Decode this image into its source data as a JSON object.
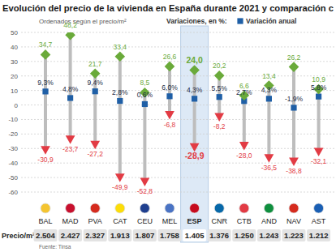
{
  "chart_data": {
    "type": "dot",
    "title": "Evolución del precio de la vivienda en España durante 2021 y comparación c",
    "subtitle": "Ordenados según el precio/m²",
    "legend_title": "Variaciones, en %:",
    "categories": [
      "BAL",
      "MAD",
      "PVA",
      "CAT",
      "CEU",
      "MEL",
      "ESP",
      "CNR",
      "CTB",
      "AND",
      "NAV",
      "AST"
    ],
    "series": [
      {
        "name": "Variación anual",
        "color": "#1f5fa6",
        "marker": "square",
        "values": [
          9.3,
          4.8,
          9.4,
          2.8,
          0.6,
          6.0,
          4.3,
          5.5,
          2.7,
          4.3,
          -1.9,
          5.8
        ],
        "value_labels": [
          "9,3%",
          "4,8%",
          "9,4%",
          "2,8%",
          "0,6%",
          "6,0%",
          "4,3%",
          "5,5%",
          "2,7%",
          "4,3%",
          "-1,9%",
          "5,8%"
        ]
      },
      {
        "color": "#6aaa3a",
        "marker": "diamond",
        "values": [
          34.7,
          48.2,
          21.7,
          33.4,
          8.5,
          26.6,
          24.0,
          20.2,
          6.6,
          13.4,
          26.2,
          10.9
        ],
        "value_labels": [
          "34,7",
          "48,2",
          "21,7",
          "33,4",
          "8,5",
          "26,6",
          "24,0",
          "20,2",
          "6,6",
          "13,4",
          "26,2",
          "10,9"
        ]
      },
      {
        "color": "#e23b44",
        "marker": "triangle",
        "values": [
          -30.9,
          -23.7,
          -27.2,
          -49.9,
          -52.8,
          -6.8,
          -28.9,
          -8.2,
          -28.0,
          -36.5,
          -38.8,
          -32.1
        ],
        "value_labels": [
          "-30,9",
          "-23,7",
          "-27,2",
          "-49,9",
          "-52,8",
          "-6,8",
          "-28,9",
          "-8,2",
          "-28,0",
          "-36,5",
          "-38,8",
          "-32,1"
        ]
      }
    ],
    "ylim": [
      -60,
      50
    ],
    "yticks": [
      -60,
      -50,
      -40,
      -30,
      -20,
      -10,
      0,
      10,
      20,
      30,
      40,
      50
    ],
    "grid": true,
    "data_labels": true,
    "prices": {
      "label": "Precio/m²",
      "values": [
        2504,
        2427,
        2327,
        1913,
        1807,
        1758,
        1405,
        1376,
        1250,
        1243,
        1223,
        1212
      ],
      "value_labels": [
        "2.504",
        "2.427",
        "2.327",
        "1.913",
        "1.807",
        "1.758",
        "1.405",
        "1.376",
        "1.250",
        "1.243",
        "1.223",
        "1.212"
      ]
    },
    "source": "Fuente: Tinsa"
  }
}
